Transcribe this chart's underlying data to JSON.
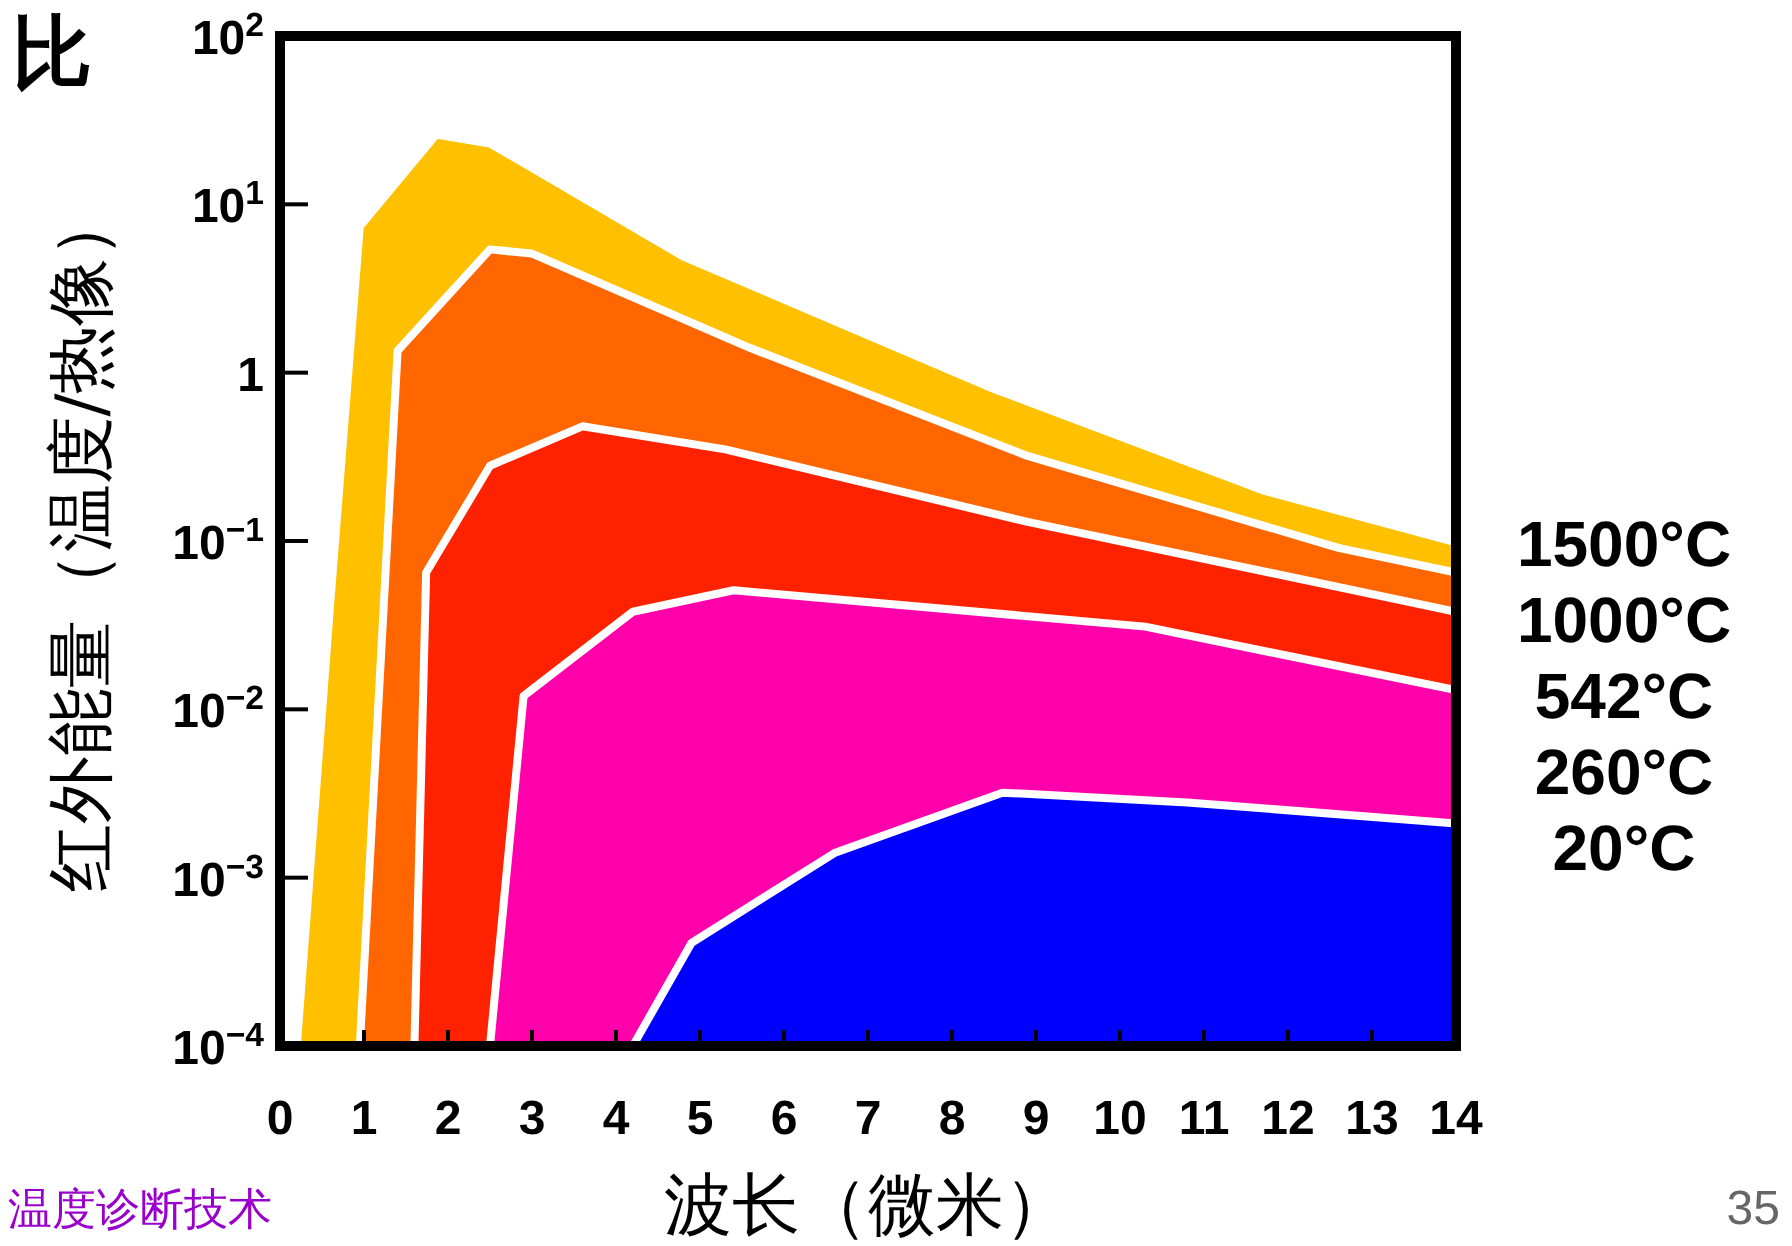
{
  "chart_data": {
    "type": "area",
    "title": "比",
    "xlabel": "波长（微米）",
    "ylabel": "红外能量（温度/热像）",
    "log": "y",
    "xlim": [
      0,
      14
    ],
    "xticks": [
      0,
      1,
      2,
      3,
      4,
      5,
      6,
      7,
      8,
      9,
      10,
      11,
      12,
      13,
      14
    ],
    "ylim": [
      0.0001,
      100
    ],
    "yticks": [
      {
        "value": 0.0001,
        "label": "10$^{−4}$"
      },
      {
        "value": 0.001,
        "label": "10$^{−3}$"
      },
      {
        "value": 0.01,
        "label": "10$^{−2}$"
      },
      {
        "value": 0.1,
        "label": "10$^{−1}$"
      },
      1,
      {
        "value": 10,
        "label": "10$^{1}$"
      },
      {
        "value": 100,
        "label": "10$^{2}$"
      }
    ],
    "legend": false,
    "series": [
      {
        "name": "1500°C",
        "color": "#ffc000",
        "x": [
          0.2,
          0.6,
          0.95,
          1.86,
          2.5,
          4.8,
          8.5,
          11.7,
          14
        ],
        "values": [
          0.0001,
          0.044,
          7.4,
          26,
          23,
          4.9,
          0.8,
          0.2,
          0.098
        ]
      },
      {
        "name": "1000°C",
        "color": "#ff6600",
        "x": [
          0.95,
          1.4,
          2.5,
          3.0,
          5.6,
          8.9,
          12.6,
          14
        ],
        "values": [
          0.0001,
          1.35,
          5.4,
          5.1,
          1.4,
          0.32,
          0.091,
          0.065
        ]
      },
      {
        "name": "542°C",
        "color": "#ff2200",
        "x": [
          1.6,
          1.74,
          2.5,
          3.6,
          5.3,
          8.9,
          14
        ],
        "values": [
          0.0001,
          0.065,
          0.28,
          0.48,
          0.35,
          0.13,
          0.038
        ]
      },
      {
        "name": "260°C",
        "color": "#ff00aa",
        "x": [
          2.5,
          2.9,
          4.2,
          5.4,
          10.3,
          14
        ],
        "values": [
          0.0001,
          0.012,
          0.038,
          0.051,
          0.031,
          0.013
        ]
      },
      {
        "name": "20°C",
        "color": "#0000ff",
        "x": [
          4.2,
          4.9,
          6.6,
          8.6,
          10.8,
          14
        ],
        "values": [
          0.0001,
          0.00041,
          0.0014,
          0.0032,
          0.0028,
          0.0021
        ]
      }
    ],
    "annotations": [
      "温度诊断技术",
      "35"
    ]
  }
}
